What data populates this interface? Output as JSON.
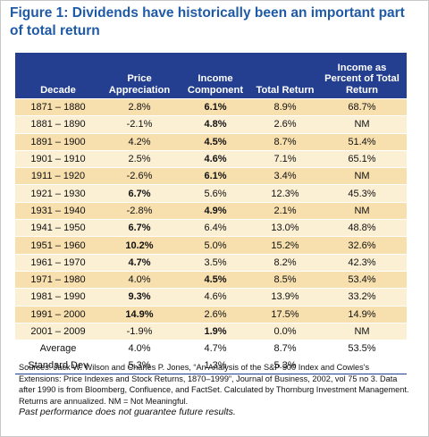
{
  "title": "Figure 1: Dividends have historically been an important part of total return",
  "columns": [
    "Decade",
    "Price Appreciation",
    "Income Component",
    "Total Return",
    "Income as Percent of Total Return"
  ],
  "rows": [
    {
      "decade": "1871 – 1880",
      "price": "2.8%",
      "income": "6.1%",
      "total": "8.9%",
      "pct": "68.7%",
      "bold": "income"
    },
    {
      "decade": "1881 – 1890",
      "price": "-2.1%",
      "income": "4.8%",
      "total": "2.6%",
      "pct": "NM",
      "bold": "income"
    },
    {
      "decade": "1891 – 1900",
      "price": "4.2%",
      "income": "4.5%",
      "total": "8.7%",
      "pct": "51.4%",
      "bold": "income"
    },
    {
      "decade": "1901 – 1910",
      "price": "2.5%",
      "income": "4.6%",
      "total": "7.1%",
      "pct": "65.1%",
      "bold": "income"
    },
    {
      "decade": "1911 – 1920",
      "price": "-2.6%",
      "income": "6.1%",
      "total": "3.4%",
      "pct": "NM",
      "bold": "income"
    },
    {
      "decade": "1921 – 1930",
      "price": "6.7%",
      "income": "5.6%",
      "total": "12.3%",
      "pct": "45.3%",
      "bold": "price"
    },
    {
      "decade": "1931 – 1940",
      "price": "-2.8%",
      "income": "4.9%",
      "total": "2.1%",
      "pct": "NM",
      "bold": "income"
    },
    {
      "decade": "1941 – 1950",
      "price": "6.7%",
      "income": "6.4%",
      "total": "13.0%",
      "pct": "48.8%",
      "bold": "price"
    },
    {
      "decade": "1951 – 1960",
      "price": "10.2%",
      "income": "5.0%",
      "total": "15.2%",
      "pct": "32.6%",
      "bold": "price"
    },
    {
      "decade": "1961 – 1970",
      "price": "4.7%",
      "income": "3.5%",
      "total": "8.2%",
      "pct": "42.3%",
      "bold": "price"
    },
    {
      "decade": "1971 – 1980",
      "price": "4.0%",
      "income": "4.5%",
      "total": "8.5%",
      "pct": "53.4%",
      "bold": "income"
    },
    {
      "decade": "1981 – 1990",
      "price": "9.3%",
      "income": "4.6%",
      "total": "13.9%",
      "pct": "33.2%",
      "bold": "price"
    },
    {
      "decade": "1991 – 2000",
      "price": "14.9%",
      "income": "2.6%",
      "total": "17.5%",
      "pct": "14.9%",
      "bold": "price"
    },
    {
      "decade": "2001 – 2009",
      "price": "-1.9%",
      "income": "1.9%",
      "total": "0.0%",
      "pct": "NM",
      "bold": "income"
    }
  ],
  "summary": [
    {
      "label": "Average",
      "price": "4.0%",
      "income": "4.7%",
      "total": "8.7%",
      "pct": "53.5%"
    },
    {
      "label": "Standard Dev",
      "price": "5.3%",
      "income": "1.3%",
      "total": "5.3%",
      "pct": ""
    }
  ],
  "sources": "Sources: Jack W. Wilson and Charles P. Jones, “An Analysis of the S&P 500 Index and Cowles's Extensions: Price Indexes and Stock Returns, 1870–1999”, Journal of Business, 2002, vol 75 no 3. Data after 1990 is from Bloomberg, Confluence, and FactSet. Calculated by Thornburg Investment Management. Returns are annualized. NM = Not Meaningful.",
  "disclaimer": "Past performance does not guarantee future results.",
  "colors": {
    "title": "#1f5aa6",
    "header_bg": "#243f8f",
    "row_odd": "#f7dfae",
    "row_even": "#fbefd4"
  }
}
